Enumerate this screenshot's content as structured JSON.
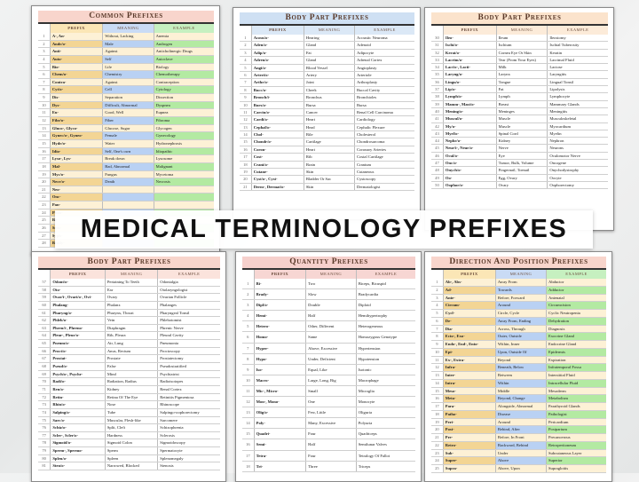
{
  "banner": {
    "title": "MEDICAL TERMINOLOGY PREFIXES"
  },
  "headers": {
    "prefix": "Prefix",
    "meaning": "Meaning",
    "example": "Example"
  },
  "sheets": [
    {
      "id": "common",
      "title": "Common Prefixes",
      "style": "colored",
      "colors": {
        "title": "#f8d5cc",
        "prefix_head": "#fbe6b6",
        "meaning_head": "#c9dbf5",
        "example_head": "#c6f0c0",
        "cream": "#fdf1d6",
        "prefix_alt": "#f3d594",
        "meaning_alt": "#b9d1f3",
        "example_alt": "#b3eaa2"
      },
      "rows": [
        [
          "1",
          "A-, An-",
          "Without, Lacking",
          "Anemia"
        ],
        [
          "2",
          "Andr/o-",
          "Male",
          "Androgen"
        ],
        [
          "3",
          "Anti-",
          "Against",
          "Anticholinergic Drugs"
        ],
        [
          "4",
          "Auto-",
          "Self",
          "Autoclave"
        ],
        [
          "5",
          "Bio-",
          "Life",
          "Biology"
        ],
        [
          "6",
          "Chem/o-",
          "Chemistry",
          "Chemotherapy"
        ],
        [
          "7",
          "Contra-",
          "Against",
          "Contraception"
        ],
        [
          "8",
          "Cyt/o-",
          "Cell",
          "Cytology"
        ],
        [
          "9",
          "Dis-",
          "Separation",
          "Dissection"
        ],
        [
          "10",
          "Dys-",
          "Difficult, Abnormal",
          "Dyspnea"
        ],
        [
          "11",
          "Eu-",
          "Good, Well",
          "Eupnea"
        ],
        [
          "12",
          "Fibr/o-",
          "Fiber",
          "Fibroma"
        ],
        [
          "13",
          "Gluco-, Glyco-",
          "Glucose, Sugar",
          "Glycogen"
        ],
        [
          "14",
          "Gynec/o-, Gyneo-",
          "Female",
          "Gynecology"
        ],
        [
          "15",
          "Hydr/o-",
          "Water",
          "Hydronephrosis"
        ],
        [
          "16",
          "Idio-",
          "Self, One's own",
          "Idiopathic"
        ],
        [
          "17",
          "Lyso-, Lys-",
          "Break down",
          "Lysosome"
        ],
        [
          "18",
          "Mal-",
          "Bad, Abnormal",
          "Malignant"
        ],
        [
          "19",
          "Myc/o-",
          "Fungus",
          "Mycetoma"
        ],
        [
          "20",
          "Necr/o-",
          "Death",
          "Necrosis"
        ],
        [
          "21",
          "Neo-",
          "",
          ""
        ],
        [
          "22",
          "Onc-",
          "",
          ""
        ],
        [
          "23",
          "Pan-",
          "",
          ""
        ],
        [
          "24",
          "Phon-",
          "",
          ""
        ],
        [
          "25",
          "Re-",
          "",
          ""
        ],
        [
          "26",
          "Sens-",
          "",
          ""
        ],
        [
          "27",
          "Syph-",
          "",
          ""
        ],
        [
          "28",
          "Brady-",
          "",
          ""
        ]
      ]
    },
    {
      "id": "body1",
      "title": "Body Part Prefixes",
      "style": "plain",
      "colors": {
        "title": "#cfe0f3",
        "prefix_head": "#dbe8f6",
        "meaning_head": "#dbe8f6",
        "example_head": "#dbe8f6"
      },
      "rows": [
        [
          "1",
          "Acous/o-",
          "Hearing",
          "Acoustic Neuroma"
        ],
        [
          "2",
          "Aden/o-",
          "Gland",
          "Adenoid"
        ],
        [
          "3",
          "Adip/o-",
          "Fat",
          "Adipocyte"
        ],
        [
          "4",
          "Adren/o-",
          "Gland",
          "Adrenal Cortex"
        ],
        [
          "5",
          "Angi/o-",
          "Blood Vessel",
          "Angioplasty"
        ],
        [
          "6",
          "Arteri/o-",
          "Artery",
          "Arteriole"
        ],
        [
          "7",
          "Arthr/o-",
          "Joint",
          "Arthroplasty"
        ],
        [
          "8",
          "Bucc/o-",
          "Cheek",
          "Buccal Cavity"
        ],
        [
          "9",
          "Bronch/i-",
          "Bronchus",
          "Bronchioles"
        ],
        [
          "10",
          "Burs/o-",
          "Bursa",
          "Bursa"
        ],
        [
          "11",
          "Carcin/o-",
          "Cancer",
          "Renal Cell Carcinoma"
        ],
        [
          "12",
          "Cardi/o-",
          "Heart",
          "Cardiology"
        ],
        [
          "13",
          "Cephal/o-",
          "Head",
          "Cephalic Flexure"
        ],
        [
          "14",
          "Chol-",
          "Bile",
          "Cholesterol"
        ],
        [
          "15",
          "Chondr/o-",
          "Cartilage",
          "Chondrosarcoma"
        ],
        [
          "16",
          "Coron-",
          "Heart",
          "Coronary Arteries"
        ],
        [
          "17",
          "Cost-",
          "Rib",
          "Costal Cartilage"
        ],
        [
          "18",
          "Crani/o-",
          "Brain",
          "Cranium"
        ],
        [
          "19",
          "Cutane-",
          "Skin",
          "Cutaneous"
        ],
        [
          "20",
          "Cyst/o-, Cyst-",
          "Bladder Or Sac",
          "Cystoscopy"
        ],
        [
          "21",
          "Derm-, Dermat/o-",
          "Skin",
          "Dermatologist"
        ]
      ]
    },
    {
      "id": "body2",
      "title": "Body Part Prefixes",
      "style": "plain",
      "colors": {
        "title": "#fbe3cc",
        "prefix_head": "#fcebd9",
        "meaning_head": "#fcebd9",
        "example_head": "#fcebd9"
      },
      "rows": [
        [
          "30",
          "Ileo-",
          "Ileum",
          "Ileostomy"
        ],
        [
          "31",
          "Ischi/o-",
          "Ischium",
          "Ischial Tuberosity"
        ],
        [
          "32",
          "Kerat/o-",
          "Cornea Eye Or Skin",
          "Keratin"
        ],
        [
          "33",
          "Lacrim/o-",
          "Tear (From Your Eyes)",
          "Lacrimal Fluid"
        ],
        [
          "34",
          "Lact/o-, Lacti-",
          "Milk",
          "Lactose"
        ],
        [
          "35",
          "Laryng/o-",
          "Larynx",
          "Laryngitis"
        ],
        [
          "36",
          "Lingu/o-",
          "Tongue",
          "Lingual Tonsil"
        ],
        [
          "37",
          "Lip/o-",
          "Fat",
          "Lipolysis"
        ],
        [
          "38",
          "Lymph/o-",
          "Lymph",
          "Lymphocyte"
        ],
        [
          "39",
          "Mamm-, Mast/o-",
          "Breast",
          "Mammary Glands"
        ],
        [
          "40",
          "Mening/o-",
          "Meninges",
          "Meningitis"
        ],
        [
          "41",
          "Muscul/o-",
          "Muscle",
          "Musculoskeletal"
        ],
        [
          "42",
          "My/o-",
          "Muscle",
          "Myocardium"
        ],
        [
          "43",
          "Myel/o-",
          "Spinal Cord",
          "Myelin"
        ],
        [
          "44",
          "Nephr/o-",
          "Kidney",
          "Nephron"
        ],
        [
          "45",
          "Neur/i-, Neur/o-",
          "Nerve",
          "Neurons"
        ],
        [
          "46",
          "Ocul/o-",
          "Eye",
          "Oculomotor Nerve"
        ],
        [
          "47",
          "Onc/o-",
          "Tumor, Bulk, Volume",
          "Oncogene"
        ],
        [
          "48",
          "Onych/o-",
          "Fingernail, Toenail",
          "Onychodystrophy"
        ],
        [
          "49",
          "Oo-",
          "Egg, Ovary",
          "Oocyte"
        ],
        [
          "50",
          "Oophor/o-",
          "Ovary",
          "Oophorectomy"
        ]
      ]
    },
    {
      "id": "body3",
      "title": "Body Part Prefixes",
      "style": "plain",
      "colors": {
        "title": "#f8d5cc",
        "prefix_head": "#fbe3dc",
        "meaning_head": "#fbe3dc",
        "example_head": "#fbe3dc"
      },
      "rows": [
        [
          "57",
          "Odont/o-",
          "Pertaining To Teeth",
          "Odontalgia"
        ],
        [
          "58",
          "Oto-",
          "Ear",
          "Otolaryngologist"
        ],
        [
          "59",
          "Ovar/i-, Ovari/o-, Ovi-",
          "Ovary",
          "Ovarian Follicle"
        ],
        [
          "60",
          "Phalang-",
          "Phalanx",
          "Phalanges"
        ],
        [
          "61",
          "Pharyng/o-",
          "Pharynx, Throat",
          "Pharyngeal Tonsil"
        ],
        [
          "62",
          "Phleb/o-",
          "Vein",
          "Phlebotomist"
        ],
        [
          "63",
          "Phren/i-, Phreno-",
          "Diaphragm",
          "Phrenic Nerve"
        ],
        [
          "64",
          "Pleur-, Pleur/o-",
          "Rib, Pleura",
          "Pleural Cavity"
        ],
        [
          "65",
          "Pneum/o-",
          "Air, Lung",
          "Pneumonia"
        ],
        [
          "66",
          "Proct/o-",
          "Anus, Rectum",
          "Proctoscopy"
        ],
        [
          "67",
          "Prostat-",
          "Prostate",
          "Prostatectomy"
        ],
        [
          "68",
          "Pseud/o-",
          "False",
          "Pseudostratified"
        ],
        [
          "69",
          "Psych/o-, Psychr-",
          "Mind",
          "Psychiatrist"
        ],
        [
          "70",
          "Radi/o-",
          "Radiation, Radius",
          "Radioisotopes"
        ],
        [
          "71",
          "Ren/o-",
          "Kidney",
          "Renal Cortex"
        ],
        [
          "72",
          "Retin-",
          "Retina Of The Eye",
          "Retinitis Pigmentosa"
        ],
        [
          "73",
          "Rhin/o-",
          "Nose",
          "Rhinoscope"
        ],
        [
          "74",
          "Salping/o-",
          "Tube",
          "Salpingo-oophorectomy"
        ],
        [
          "75",
          "Sarc/o-",
          "Muscular, Flesh-like",
          "Sarcomere"
        ],
        [
          "76",
          "Schiz/o-",
          "Split, Cleft",
          "Schizophrenia"
        ],
        [
          "77",
          "Scler-, Scler/o-",
          "Hardness",
          "Sclerosis"
        ],
        [
          "78",
          "Sigmoid/o-",
          "Sigmoid Colon",
          "Sigmoidoscopy"
        ],
        [
          "79",
          "Sperm-, Spermo-",
          "Sperm",
          "Spermatocyte"
        ],
        [
          "80",
          "Splen/o-",
          "Spleen",
          "Splenomegaly"
        ],
        [
          "81",
          "Sten/o-",
          "Narrowed, Blocked",
          "Stenosis"
        ]
      ]
    },
    {
      "id": "quantity",
      "title": "Quantity Prefixes",
      "style": "plain",
      "colors": {
        "title": "#f6d0cc",
        "prefix_head": "#f7d6d3",
        "meaning_head": "#f7d6d3",
        "example_head": "#f7d6d3"
      },
      "rows": [
        [
          "1",
          "Bi-",
          "Two",
          "Biceps, Bicuspid"
        ],
        [
          "2",
          "Brady-",
          "Slow",
          "Bradycardia"
        ],
        [
          "3",
          "Dipl/o-",
          "Double",
          "Diploid"
        ],
        [
          "4",
          "Hemi-",
          "Half",
          "Hemihypertrophy"
        ],
        [
          "5",
          "Hetero-",
          "Other, Different",
          "Heterogeneous"
        ],
        [
          "6",
          "Homo-",
          "Same",
          "Homozygous Genotype"
        ],
        [
          "7",
          "Hyper-",
          "Above, Excessive",
          "Hypertension"
        ],
        [
          "8",
          "Hypo-",
          "Under, Deficient",
          "Hypotension"
        ],
        [
          "9",
          "Iso-",
          "Equal, Like",
          "Isotonic"
        ],
        [
          "10",
          "Macro-",
          "Large, Long, Big",
          "Macrophage"
        ],
        [
          "11",
          "Mic-, Micro-",
          "Small",
          "Microglia"
        ],
        [
          "12",
          "Mon-, Mono-",
          "One",
          "Monocyte"
        ],
        [
          "13",
          "Olig/o-",
          "Few, Little",
          "Oliguria"
        ],
        [
          "14",
          "Poly-",
          "Many, Excessive",
          "Polyuria"
        ],
        [
          "15",
          "Quadri-",
          "Four",
          "Quadriceps"
        ],
        [
          "16",
          "Semi-",
          "Half",
          "Semilunar Valves"
        ],
        [
          "17",
          "Tetra-",
          "Four",
          "Tetralogy Of Fallot"
        ],
        [
          "18",
          "Tri-",
          "Three",
          "Triceps"
        ]
      ]
    },
    {
      "id": "direction",
      "title": "Direction And Position Prefixes",
      "style": "colored",
      "colors": {
        "title": "#f8d5cc",
        "prefix_head": "#fbe6b6",
        "meaning_head": "#c9dbf5",
        "example_head": "#c6f0c0",
        "cream": "#fdf1d6",
        "prefix_alt": "#f3d594",
        "meaning_alt": "#b9d1f3",
        "example_alt": "#b3eaa2"
      },
      "rows": [
        [
          "1",
          "Ab-, Abs-",
          "Away From",
          "Abductor"
        ],
        [
          "2",
          "Ad-",
          "Towards",
          "Adductor"
        ],
        [
          "3",
          "Ante-",
          "Before, Forward",
          "Antenatal"
        ],
        [
          "4",
          "Circum-",
          "Around",
          "Circumcision"
        ],
        [
          "5",
          "Cycl-",
          "Circle, Cycle",
          "Cyclic Neutropenia"
        ],
        [
          "6",
          "De-",
          "Away From, Ending",
          "Dehydration"
        ],
        [
          "7",
          "Dia-",
          "Across, Through",
          "Diagnosis"
        ],
        [
          "8",
          "Ecto-, Exo-",
          "Outer, Outside",
          "Exocrine Gland"
        ],
        [
          "9",
          "Endo-, End-, Ento-",
          "Within, Inner",
          "Endocrine Gland"
        ],
        [
          "10",
          "Epi-",
          "Upon, Outside Of",
          "Epidermis"
        ],
        [
          "11",
          "Ex-, Extra-",
          "Beyond",
          "Expiration"
        ],
        [
          "12",
          "Infra-",
          "Beneath, Below",
          "Infratemporal Fossa"
        ],
        [
          "13",
          "Inter-",
          "Between",
          "Interstitial Fluid"
        ],
        [
          "14",
          "Intra-",
          "Within",
          "Intracellular Fluid"
        ],
        [
          "15",
          "Meso-",
          "Middle",
          "Mesoderm"
        ],
        [
          "16",
          "Meta-",
          "Beyond, Change",
          "Metabolism"
        ],
        [
          "17",
          "Para-",
          "Alongside, Abnormal",
          "Parathyroid Glands"
        ],
        [
          "18",
          "Patho-",
          "Disease",
          "Pathologist"
        ],
        [
          "19",
          "Peri-",
          "Around",
          "Pericardium"
        ],
        [
          "20",
          "Post-",
          "Behind, After",
          "Postpartum"
        ],
        [
          "21",
          "Pre-",
          "Before, In Front",
          "Precancerous"
        ],
        [
          "22",
          "Retro-",
          "Backward, Behind",
          "Retroperitoneum"
        ],
        [
          "23",
          "Sub-",
          "Under",
          "Subcutaneous Layer"
        ],
        [
          "24",
          "Super-",
          "Above",
          "Superior"
        ],
        [
          "25",
          "Supra-",
          "Above, Upon",
          "Supraglottis"
        ]
      ]
    }
  ]
}
